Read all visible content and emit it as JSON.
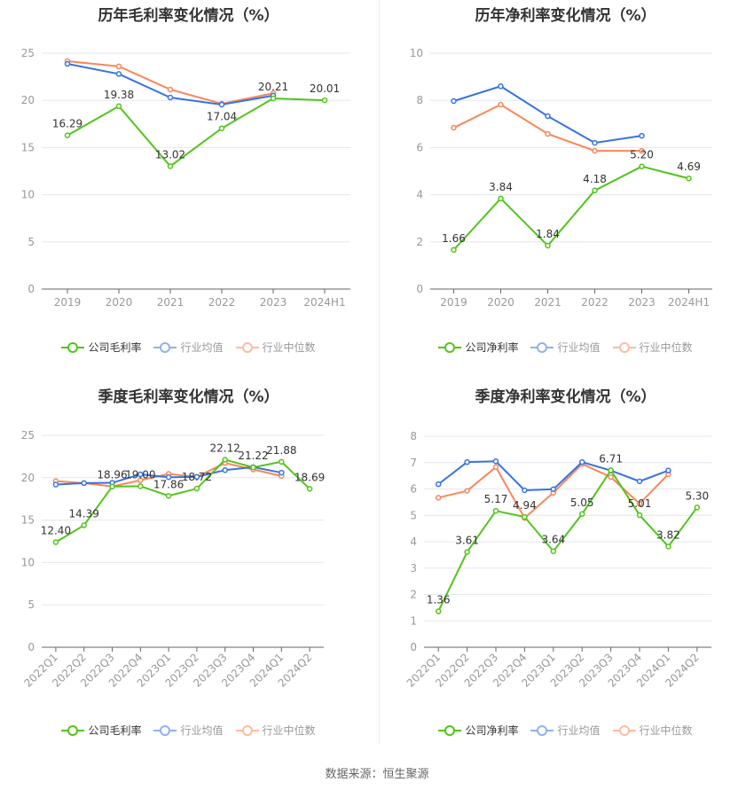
{
  "colors": {
    "company": "#52c41a",
    "industry_avg": "#3873e0",
    "industry_median": "#fa8657",
    "grid": "#e3e7f2",
    "axis": "#666666",
    "tick_text": "#999999"
  },
  "legend_gross": [
    "公司毛利率",
    "行业均值",
    "行业中位数"
  ],
  "legend_net": [
    "公司净利率",
    "行业均值",
    "行业中位数"
  ],
  "footer": "数据来源：恒生聚源",
  "chart_data": [
    {
      "type": "line",
      "title": "历年毛利率变化情况（%）",
      "categories": [
        "2019",
        "2020",
        "2021",
        "2022",
        "2023",
        "2024H1"
      ],
      "ylim": [
        0,
        25
      ],
      "yticks": [
        0,
        5,
        10,
        15,
        20,
        25
      ],
      "grid": true,
      "legend": "bottom",
      "series": [
        {
          "name": "公司毛利率",
          "values": [
            16.29,
            19.38,
            13.02,
            17.04,
            20.21,
            20.01
          ],
          "labels": true
        },
        {
          "name": "行业均值",
          "values": [
            23.87,
            22.8,
            20.3,
            19.55,
            20.5,
            null
          ]
        },
        {
          "name": "行业中位数",
          "values": [
            24.15,
            23.6,
            21.15,
            19.65,
            20.75,
            null
          ]
        }
      ]
    },
    {
      "type": "line",
      "title": "历年净利率变化情况（%）",
      "categories": [
        "2019",
        "2020",
        "2021",
        "2022",
        "2023",
        "2024H1"
      ],
      "ylim": [
        0,
        10
      ],
      "yticks": [
        0,
        2,
        4,
        6,
        8,
        10
      ],
      "grid": true,
      "legend": "bottom",
      "series": [
        {
          "name": "公司净利率",
          "values": [
            1.66,
            3.84,
            1.84,
            4.18,
            5.2,
            4.69
          ],
          "labels": true
        },
        {
          "name": "行业均值",
          "values": [
            7.97,
            8.6,
            7.33,
            6.2,
            6.5,
            null
          ]
        },
        {
          "name": "行业中位数",
          "values": [
            6.84,
            7.82,
            6.58,
            5.86,
            5.86,
            null
          ]
        }
      ]
    },
    {
      "type": "line",
      "title": "季度毛利率变化情况（%）",
      "categories": [
        "2022Q1",
        "2022Q2",
        "2022Q3",
        "2022Q4",
        "2023Q1",
        "2023Q2",
        "2023Q3",
        "2023Q4",
        "2024Q1",
        "2024Q2"
      ],
      "ylim": [
        0,
        25
      ],
      "yticks": [
        0,
        5,
        10,
        15,
        20,
        25
      ],
      "grid": true,
      "legend": "bottom",
      "series": [
        {
          "name": "公司毛利率",
          "values": [
            12.4,
            14.39,
            18.96,
            19.0,
            17.86,
            18.72,
            22.12,
            21.22,
            21.88,
            18.69
          ],
          "labels": true
        },
        {
          "name": "行业均值",
          "values": [
            19.2,
            19.36,
            19.4,
            20.4,
            20.06,
            20.1,
            20.9,
            21.25,
            20.6,
            null
          ]
        },
        {
          "name": "行业中位数",
          "values": [
            19.6,
            19.36,
            18.97,
            19.7,
            20.45,
            20.1,
            21.74,
            20.97,
            20.2,
            null
          ]
        }
      ]
    },
    {
      "type": "line",
      "title": "季度净利率变化情况（%）",
      "categories": [
        "2022Q1",
        "2022Q2",
        "2022Q3",
        "2022Q4",
        "2023Q1",
        "2023Q2",
        "2023Q3",
        "2023Q4",
        "2024Q1",
        "2024Q2"
      ],
      "ylim": [
        0,
        8
      ],
      "yticks": [
        0,
        1,
        2,
        3,
        4,
        5,
        6,
        7,
        8
      ],
      "grid": true,
      "legend": "bottom",
      "series": [
        {
          "name": "公司净利率",
          "values": [
            1.36,
            3.61,
            5.17,
            4.94,
            3.64,
            5.05,
            6.71,
            5.01,
            3.82,
            5.3
          ],
          "labels": true
        },
        {
          "name": "行业均值",
          "values": [
            6.18,
            7.02,
            7.05,
            5.95,
            5.99,
            7.02,
            6.7,
            6.29,
            6.7,
            null
          ]
        },
        {
          "name": "行业中位数",
          "values": [
            5.67,
            5.93,
            6.83,
            4.9,
            5.86,
            6.95,
            6.45,
            5.44,
            6.56,
            null
          ]
        }
      ]
    }
  ]
}
